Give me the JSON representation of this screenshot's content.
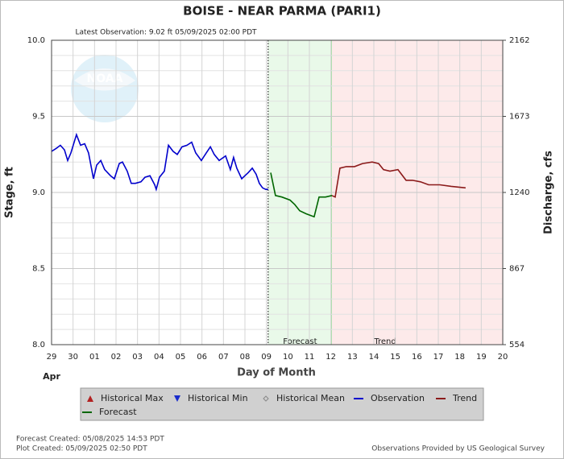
{
  "chart_data": {
    "type": "line",
    "title": "BOISE - NEAR PARMA  (PARI1)",
    "subtitle": "Latest Observation: 9.02 ft 05/09/2025 02:00 PDT",
    "ylabel": "Stage, ft",
    "y2label": "Discharge, cfs",
    "xlabel": "Day of Month",
    "month_label": "Apr",
    "logo_text": "NOAA",
    "xlim": [
      0,
      21
    ],
    "xticks": [
      {
        "value": 0,
        "label": "29"
      },
      {
        "value": 1,
        "label": "30"
      },
      {
        "value": 2,
        "label": "01"
      },
      {
        "value": 3,
        "label": "02"
      },
      {
        "value": 4,
        "label": "03"
      },
      {
        "value": 5,
        "label": "04"
      },
      {
        "value": 6,
        "label": "05"
      },
      {
        "value": 7,
        "label": "06"
      },
      {
        "value": 8,
        "label": "07"
      },
      {
        "value": 9,
        "label": "08"
      },
      {
        "value": 10,
        "label": "09"
      },
      {
        "value": 11,
        "label": "10"
      },
      {
        "value": 12,
        "label": "11"
      },
      {
        "value": 13,
        "label": "12"
      },
      {
        "value": 14,
        "label": "13"
      },
      {
        "value": 15,
        "label": "14"
      },
      {
        "value": 16,
        "label": "15"
      },
      {
        "value": 17,
        "label": "16"
      },
      {
        "value": 18,
        "label": "17"
      },
      {
        "value": 19,
        "label": "18"
      },
      {
        "value": 20,
        "label": "19"
      },
      {
        "value": 21,
        "label": "20"
      }
    ],
    "ylim": [
      8.0,
      10.0
    ],
    "yticks": [
      {
        "value": 8.0,
        "label": "8.0"
      },
      8.5,
      {
        "value": 9.0,
        "label": "9.0"
      },
      9.5,
      {
        "value": 10.0,
        "label": "10.0"
      }
    ],
    "yminorticks": [
      8.1,
      8.2,
      8.3,
      8.4,
      8.6,
      8.7,
      8.8,
      8.9,
      9.1,
      9.2,
      9.3,
      9.4,
      9.6,
      9.7,
      9.8,
      9.9
    ],
    "y2lim": [
      554,
      2162
    ],
    "y2ticks": [
      554,
      867,
      1240,
      1673,
      2162
    ],
    "grid": true,
    "bands": [
      {
        "name": "Forecast",
        "range": [
          10.08,
          13.05
        ],
        "color": "#e9f9e9",
        "edge": "#7fcf7f"
      },
      {
        "name": "Trend",
        "range": [
          13.05,
          21
        ],
        "color": "#fdeaea",
        "edge": "#f0a0a0"
      }
    ],
    "series": [
      {
        "name": "Observation",
        "color": "#0000cc",
        "x": [
          0,
          0.22,
          0.41,
          0.6,
          0.75,
          0.9,
          1.16,
          1.35,
          1.54,
          1.72,
          1.95,
          2.1,
          2.29,
          2.47,
          2.74,
          2.92,
          3.15,
          3.3,
          3.52,
          3.71,
          3.9,
          4.16,
          4.35,
          4.58,
          4.8,
          4.87,
          5.02,
          5.25,
          5.44,
          5.66,
          5.85,
          6.07,
          6.3,
          6.52,
          6.71,
          6.97,
          7.2,
          7.39,
          7.57,
          7.8,
          8.1,
          8.32,
          8.47,
          8.62,
          8.85,
          9.0,
          9.15,
          9.34,
          9.52,
          9.67,
          9.82,
          9.97,
          10.08
        ],
        "values": [
          9.27,
          9.29,
          9.31,
          9.28,
          9.21,
          9.26,
          9.38,
          9.31,
          9.32,
          9.26,
          9.09,
          9.18,
          9.21,
          9.15,
          9.11,
          9.09,
          9.19,
          9.2,
          9.14,
          9.06,
          9.06,
          9.07,
          9.1,
          9.11,
          9.05,
          9.02,
          9.1,
          9.14,
          9.31,
          9.27,
          9.25,
          9.3,
          9.31,
          9.33,
          9.26,
          9.21,
          9.26,
          9.3,
          9.25,
          9.21,
          9.24,
          9.15,
          9.23,
          9.16,
          9.09,
          9.11,
          9.13,
          9.16,
          9.12,
          9.06,
          9.03,
          9.02,
          9.02
        ]
      },
      {
        "name": "Forecast",
        "color": "#006600",
        "x": [
          10.2,
          10.42,
          10.72,
          11.1,
          11.32,
          11.55,
          11.85,
          12.22,
          12.45,
          12.75,
          13.05
        ],
        "values": [
          9.13,
          8.98,
          8.97,
          8.95,
          8.92,
          8.88,
          8.86,
          8.84,
          8.97,
          8.97,
          8.98
        ]
      },
      {
        "name": "Trend",
        "color": "#8b1a1a",
        "x": [
          13.05,
          13.2,
          13.42,
          13.72,
          14.1,
          14.47,
          14.92,
          15.22,
          15.45,
          15.75,
          16.12,
          16.5,
          16.8,
          17.17,
          17.55,
          18.07,
          18.6,
          19.27
        ],
        "values": [
          8.98,
          8.97,
          9.16,
          9.17,
          9.17,
          9.19,
          9.2,
          9.19,
          9.15,
          9.14,
          9.15,
          9.08,
          9.08,
          9.07,
          9.05,
          9.05,
          9.04,
          9.03
        ]
      }
    ],
    "legend_items": [
      {
        "name": "Historical Max",
        "symbol": "triangle-up",
        "color": "#b22222"
      },
      {
        "name": "Historical Min",
        "symbol": "triangle-down",
        "color": "#1a2ccc"
      },
      {
        "name": "Historical Mean",
        "symbol": "diamond",
        "color": "#888888"
      },
      {
        "name": "Observation",
        "symbol": "line",
        "color": "#0000cc"
      },
      {
        "name": "Trend",
        "symbol": "line",
        "color": "#8b1a1a"
      },
      {
        "name": "Forecast",
        "symbol": "line",
        "color": "#006600"
      }
    ],
    "footer_left": [
      "Forecast Created: 05/08/2025 14:53 PDT",
      "Plot Created: 05/09/2025 02:50 PDT"
    ],
    "footer_right": "Observations Provided by US Geological Survey"
  }
}
